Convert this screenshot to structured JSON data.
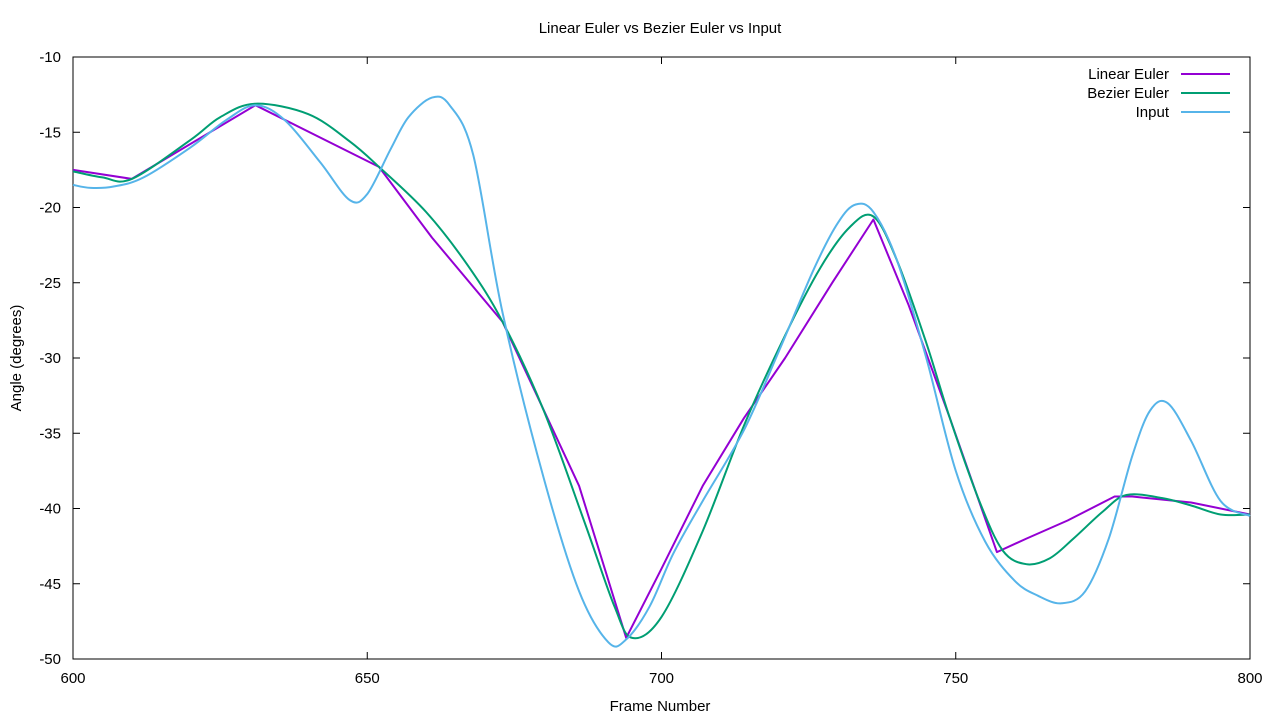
{
  "chart_data": {
    "type": "line",
    "title": "Linear Euler vs Bezier Euler vs Input",
    "xlabel": "Frame Number",
    "ylabel": "Angle (degrees)",
    "xlim": [
      600,
      800
    ],
    "ylim": [
      -50,
      -10
    ],
    "xticks": [
      600,
      650,
      700,
      750,
      800
    ],
    "yticks": [
      -10,
      -15,
      -20,
      -25,
      -30,
      -35,
      -40,
      -45,
      -50
    ],
    "grid": false,
    "legend_position": "top-right",
    "series": [
      {
        "name": "Linear Euler",
        "color": "#9400d3",
        "x": [
          600,
          610,
          631,
          652,
          661,
          673,
          686,
          694,
          700,
          707,
          714,
          721,
          729,
          736,
          742,
          749,
          757,
          762,
          769,
          777,
          780,
          790,
          800
        ],
        "y": [
          -17.5,
          -18.1,
          -13.2,
          -17.3,
          -22.0,
          -27.6,
          -38.5,
          -48.6,
          -44.0,
          -38.5,
          -34.0,
          -30.0,
          -25.0,
          -20.8,
          -26.5,
          -34.0,
          -42.9,
          -42.0,
          -40.8,
          -39.2,
          -39.2,
          -39.6,
          -40.4
        ]
      },
      {
        "name": "Bezier Euler",
        "color": "#009e73",
        "x": [
          600,
          605,
          610,
          620,
          625,
          631,
          640,
          647,
          652,
          660,
          667,
          673,
          680,
          687,
          692,
          695,
          700,
          707,
          714,
          721,
          727,
          732,
          736,
          740,
          745,
          749,
          754,
          758,
          762,
          766,
          770,
          775,
          779,
          785,
          790,
          795,
          800
        ],
        "y": [
          -17.6,
          -18.0,
          -18.1,
          -15.5,
          -14.0,
          -13.1,
          -13.8,
          -15.6,
          -17.3,
          -20.3,
          -23.8,
          -27.6,
          -33.5,
          -41.0,
          -46.5,
          -48.6,
          -47.2,
          -41.5,
          -34.5,
          -28.5,
          -24.0,
          -21.3,
          -20.6,
          -23.5,
          -29.0,
          -34.0,
          -39.5,
          -42.8,
          -43.7,
          -43.3,
          -42.0,
          -40.2,
          -39.1,
          -39.3,
          -39.8,
          -40.4,
          -40.4
        ]
      },
      {
        "name": "Input",
        "color": "#56b4e9",
        "x": [
          600,
          603,
          607,
          612,
          620,
          626,
          631,
          636,
          642,
          647,
          650,
          654,
          657,
          661,
          664,
          668,
          673,
          680,
          686,
          691,
          694,
          698,
          702,
          707,
          714,
          720,
          726,
          730,
          733,
          736,
          740,
          745,
          750,
          755,
          760,
          764,
          768,
          772,
          776,
          780,
          783,
          786,
          790,
          795,
          800
        ],
        "y": [
          -18.5,
          -18.7,
          -18.6,
          -18.0,
          -16.0,
          -14.2,
          -13.2,
          -14.2,
          -17.0,
          -19.5,
          -19.1,
          -16.1,
          -14.0,
          -12.7,
          -13.2,
          -16.5,
          -27.0,
          -38.0,
          -45.5,
          -48.9,
          -48.7,
          -46.5,
          -43.0,
          -39.5,
          -34.8,
          -29.5,
          -24.0,
          -21.0,
          -19.8,
          -20.3,
          -23.5,
          -30.0,
          -37.5,
          -42.2,
          -44.8,
          -45.8,
          -46.3,
          -45.5,
          -42.0,
          -36.5,
          -33.5,
          -33.0,
          -35.5,
          -39.5,
          -40.5
        ]
      }
    ]
  }
}
